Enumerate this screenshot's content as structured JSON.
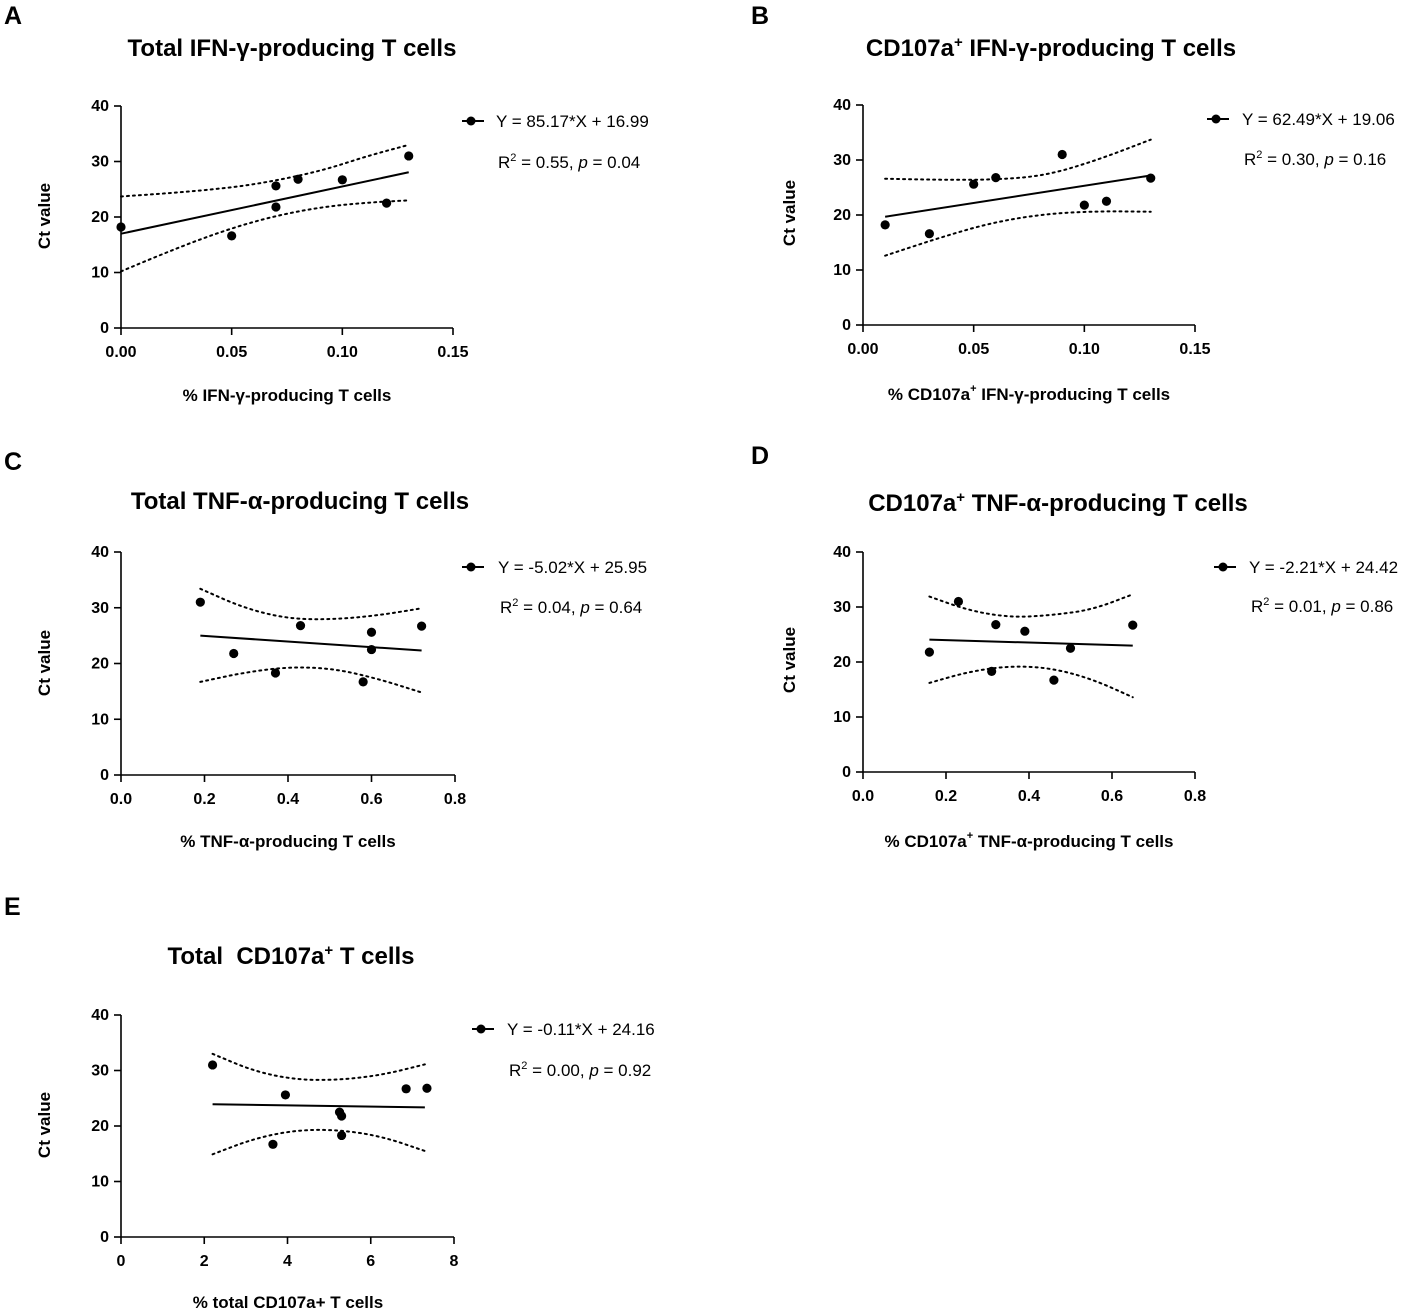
{
  "chart_data": [
    {
      "panel": "A",
      "type": "scatter",
      "title": "Total IFN-γ-producing T cells",
      "xlabel": "% IFN-γ-producing T cells",
      "ylabel": "Ct value",
      "xlim": [
        0,
        0.15
      ],
      "ylim": [
        0,
        40
      ],
      "xticks": [
        "0.00",
        "0.05",
        "0.10",
        "0.15"
      ],
      "yticks": [
        "0",
        "10",
        "20",
        "30",
        "40"
      ],
      "x": [
        0.0,
        0.05,
        0.07,
        0.07,
        0.08,
        0.1,
        0.12,
        0.13
      ],
      "y": [
        18.2,
        16.6,
        25.6,
        21.8,
        26.8,
        26.7,
        22.5,
        31.0
      ],
      "fit": {
        "slope": 85.17,
        "intercept": 16.99,
        "x_range": [
          0.0,
          0.13
        ]
      },
      "ci_lower": [
        10.2,
        13.3,
        16.2,
        18.7,
        20.6,
        21.9,
        22.6,
        23.0
      ],
      "ci_upper": [
        23.7,
        24.2,
        24.8,
        25.6,
        26.9,
        28.6,
        31.0,
        33.0
      ],
      "legend": {
        "equation": "Y = 85.17*X + 16.99",
        "r2_prefix": "R",
        "r2_sup": "2",
        "r2_value": " = 0.55, ",
        "p_label": "p",
        "p_value": " = 0.04"
      }
    },
    {
      "panel": "B",
      "type": "scatter",
      "title_main": "CD107a",
      "title_sup": "+",
      "title_rest": " IFN-γ-producing T cells",
      "xlabel_main": "% CD107a",
      "xlabel_sup": "+",
      "xlabel_rest": " IFN-γ-producing T cells",
      "ylabel": "Ct value",
      "xlim": [
        0,
        0.15
      ],
      "ylim": [
        0,
        40
      ],
      "xticks": [
        "0.00",
        "0.05",
        "0.10",
        "0.15"
      ],
      "yticks": [
        "0",
        "10",
        "20",
        "30",
        "40"
      ],
      "x": [
        0.01,
        0.03,
        0.05,
        0.06,
        0.09,
        0.1,
        0.11,
        0.13
      ],
      "y": [
        18.2,
        16.6,
        25.6,
        26.8,
        31.0,
        21.8,
        22.5,
        26.7
      ],
      "fit": {
        "slope": 62.49,
        "intercept": 19.06,
        "x_range": [
          0.01,
          0.13
        ]
      },
      "ci_lower": [
        12.6,
        15.8,
        18.6,
        20.2,
        20.7,
        20.6
      ],
      "ci_upper": [
        26.6,
        26.4,
        26.4,
        27.1,
        30.0,
        33.7
      ],
      "legend": {
        "equation": "Y = 62.49*X + 19.06",
        "r2_prefix": "R",
        "r2_sup": "2",
        "r2_value": " = 0.30, ",
        "p_label": "p",
        "p_value": " = 0.16"
      }
    },
    {
      "panel": "C",
      "type": "scatter",
      "title": "Total TNF-α-producing T cells",
      "xlabel": "% TNF-α-producing T cells",
      "ylabel": "Ct value",
      "xlim": [
        0,
        0.8
      ],
      "ylim": [
        0,
        40
      ],
      "xticks": [
        "0.0",
        "0.2",
        "0.4",
        "0.6",
        "0.8"
      ],
      "yticks": [
        "0",
        "10",
        "20",
        "30",
        "40"
      ],
      "x": [
        0.19,
        0.27,
        0.37,
        0.43,
        0.58,
        0.6,
        0.6,
        0.72
      ],
      "y": [
        31.0,
        21.8,
        18.3,
        26.8,
        16.7,
        25.6,
        22.5,
        26.7
      ],
      "fit": {
        "slope": -5.02,
        "intercept": 25.95,
        "x_range": [
          0.19,
          0.72
        ]
      },
      "ci_lower": [
        16.7,
        18.4,
        19.4,
        19.1,
        17.3,
        14.8
      ],
      "ci_upper": [
        33.4,
        29.9,
        28.0,
        27.9,
        28.6,
        29.9
      ],
      "legend": {
        "equation": "Y = -5.02*X + 25.95",
        "r2_prefix": "R",
        "r2_sup": "2",
        "r2_value": " = 0.04, ",
        "p_label": "p",
        "p_value": " = 0.64"
      }
    },
    {
      "panel": "D",
      "type": "scatter",
      "title_main": "CD107a",
      "title_sup": "+",
      "title_rest": " TNF-α-producing T cells",
      "xlabel_main": "% CD107a",
      "xlabel_sup": "+",
      "xlabel_rest": " TNF-α-producing T cells",
      "ylabel": "Ct value",
      "xlim": [
        0,
        0.8
      ],
      "ylim": [
        0,
        40
      ],
      "xticks": [
        "0.0",
        "0.2",
        "0.4",
        "0.6",
        "0.8"
      ],
      "yticks": [
        "0",
        "10",
        "20",
        "30",
        "40"
      ],
      "x": [
        0.16,
        0.23,
        0.31,
        0.32,
        0.39,
        0.46,
        0.5,
        0.65
      ],
      "y": [
        21.8,
        31.0,
        18.3,
        26.8,
        25.6,
        16.7,
        22.5,
        26.7
      ],
      "fit": {
        "slope": -2.21,
        "intercept": 24.42,
        "x_range": [
          0.16,
          0.65
        ]
      },
      "ci_lower": [
        16.2,
        18.3,
        19.3,
        18.9,
        16.9,
        13.6
      ],
      "ci_upper": [
        31.9,
        29.3,
        28.1,
        28.5,
        29.5,
        32.3
      ],
      "legend": {
        "equation": "Y = -2.21*X + 24.42",
        "r2_prefix": "R",
        "r2_sup": "2",
        "r2_value": " = 0.01, ",
        "p_label": "p",
        "p_value": " = 0.86"
      }
    },
    {
      "panel": "E",
      "type": "scatter",
      "title_main": "Total  CD107a",
      "title_sup": "+",
      "title_rest": " T cells",
      "xlabel": "% total CD107a+ T cells",
      "ylabel": "Ct value",
      "xlim": [
        0,
        8
      ],
      "ylim": [
        0,
        40
      ],
      "xticks": [
        "0",
        "2",
        "4",
        "6",
        "8"
      ],
      "yticks": [
        "0",
        "10",
        "20",
        "30",
        "40"
      ],
      "x": [
        2.2,
        3.65,
        3.95,
        5.25,
        5.3,
        5.3,
        6.85,
        7.35
      ],
      "y": [
        31.0,
        16.7,
        25.6,
        22.5,
        21.8,
        18.3,
        26.7,
        26.8
      ],
      "fit": {
        "slope": -0.11,
        "intercept": 24.16,
        "x_range": [
          2.2,
          7.3
        ]
      },
      "ci_lower": [
        14.9,
        17.8,
        19.3,
        19.3,
        18.1,
        15.5
      ],
      "ci_upper": [
        33.0,
        29.8,
        28.3,
        28.3,
        29.2,
        31.1
      ],
      "legend": {
        "equation": "Y = -0.11*X + 24.16",
        "r2_prefix": "R",
        "r2_sup": "2",
        "r2_value": " = 0.00, ",
        "p_label": "p",
        "p_value": " = 0.92"
      }
    }
  ]
}
